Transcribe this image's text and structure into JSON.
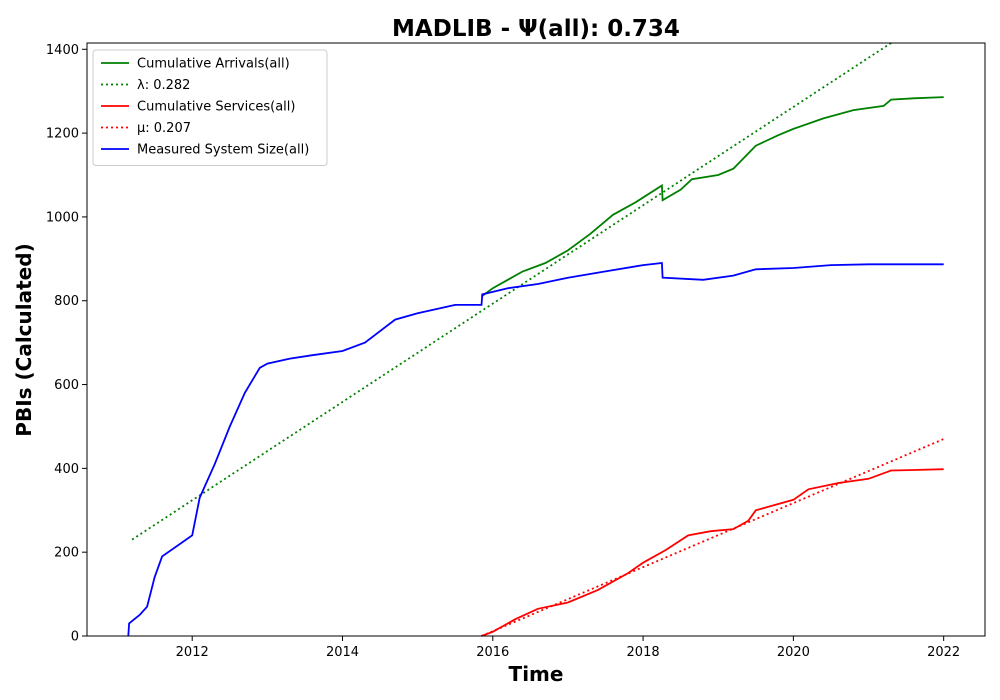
{
  "chart_data": {
    "type": "line",
    "title": "MADLIB -  Ψ(all): 0.734",
    "xlabel": "Time",
    "ylabel": "PBIs (Calculated)",
    "xlim": [
      2010.6,
      2022.55
    ],
    "ylim": [
      0,
      1415
    ],
    "x_ticks": [
      2012,
      2014,
      2016,
      2018,
      2020,
      2022
    ],
    "y_ticks": [
      0,
      200,
      400,
      600,
      800,
      1000,
      1200,
      1400
    ],
    "grid": false,
    "legend_position": "top-left",
    "series": [
      {
        "name": "Cumulative Arrivals(all)",
        "style": "solid",
        "color": "#008000",
        "x": [
          2015.85,
          2016.0,
          2016.2,
          2016.4,
          2016.7,
          2017.0,
          2017.3,
          2017.6,
          2017.9,
          2018.25,
          2018.26,
          2018.5,
          2018.65,
          2019.0,
          2019.2,
          2019.5,
          2019.8,
          2020.0,
          2020.4,
          2020.8,
          2021.2,
          2021.3,
          2021.6,
          2022.0
        ],
        "y": [
          810,
          830,
          850,
          870,
          890,
          920,
          960,
          1005,
          1035,
          1075,
          1040,
          1065,
          1090,
          1100,
          1115,
          1170,
          1195,
          1210,
          1235,
          1255,
          1265,
          1280,
          1283,
          1286
        ]
      },
      {
        "name": "λ: 0.282",
        "style": "dotted",
        "color": "#008000",
        "x": [
          2011.2,
          2021.3
        ],
        "y": [
          230,
          1415
        ]
      },
      {
        "name": "Cumulative Services(all)",
        "style": "solid",
        "color": "#ff0000",
        "x": [
          2015.85,
          2016.0,
          2016.3,
          2016.6,
          2017.0,
          2017.4,
          2017.8,
          2018.0,
          2018.3,
          2018.6,
          2018.9,
          2019.2,
          2019.4,
          2019.5,
          2019.8,
          2020.0,
          2020.2,
          2020.6,
          2021.0,
          2021.3,
          2021.6,
          2022.0
        ],
        "y": [
          0,
          10,
          40,
          65,
          80,
          110,
          150,
          175,
          205,
          240,
          250,
          255,
          275,
          300,
          315,
          325,
          350,
          365,
          375,
          395,
          396,
          398
        ]
      },
      {
        "name": "μ: 0.207",
        "style": "dotted",
        "color": "#ff0000",
        "x": [
          2015.85,
          2022.0
        ],
        "y": [
          0,
          470
        ]
      },
      {
        "name": "Measured System Size(all)",
        "style": "solid",
        "color": "#0000ff",
        "x": [
          2011.15,
          2011.16,
          2011.3,
          2011.4,
          2011.5,
          2011.6,
          2011.8,
          2012.0,
          2012.1,
          2012.3,
          2012.5,
          2012.7,
          2012.9,
          2013.0,
          2013.3,
          2013.6,
          2014.0,
          2014.3,
          2014.7,
          2015.0,
          2015.5,
          2015.85,
          2015.86,
          2016.2,
          2016.6,
          2017.0,
          2017.5,
          2018.0,
          2018.25,
          2018.26,
          2018.8,
          2019.2,
          2019.5,
          2020.0,
          2020.5,
          2021.0,
          2022.0
        ],
        "y": [
          0,
          30,
          50,
          70,
          140,
          190,
          215,
          240,
          330,
          410,
          500,
          580,
          640,
          650,
          662,
          670,
          680,
          700,
          755,
          770,
          790,
          790,
          815,
          830,
          840,
          855,
          870,
          885,
          890,
          855,
          850,
          860,
          875,
          878,
          885,
          887,
          887
        ]
      }
    ]
  }
}
